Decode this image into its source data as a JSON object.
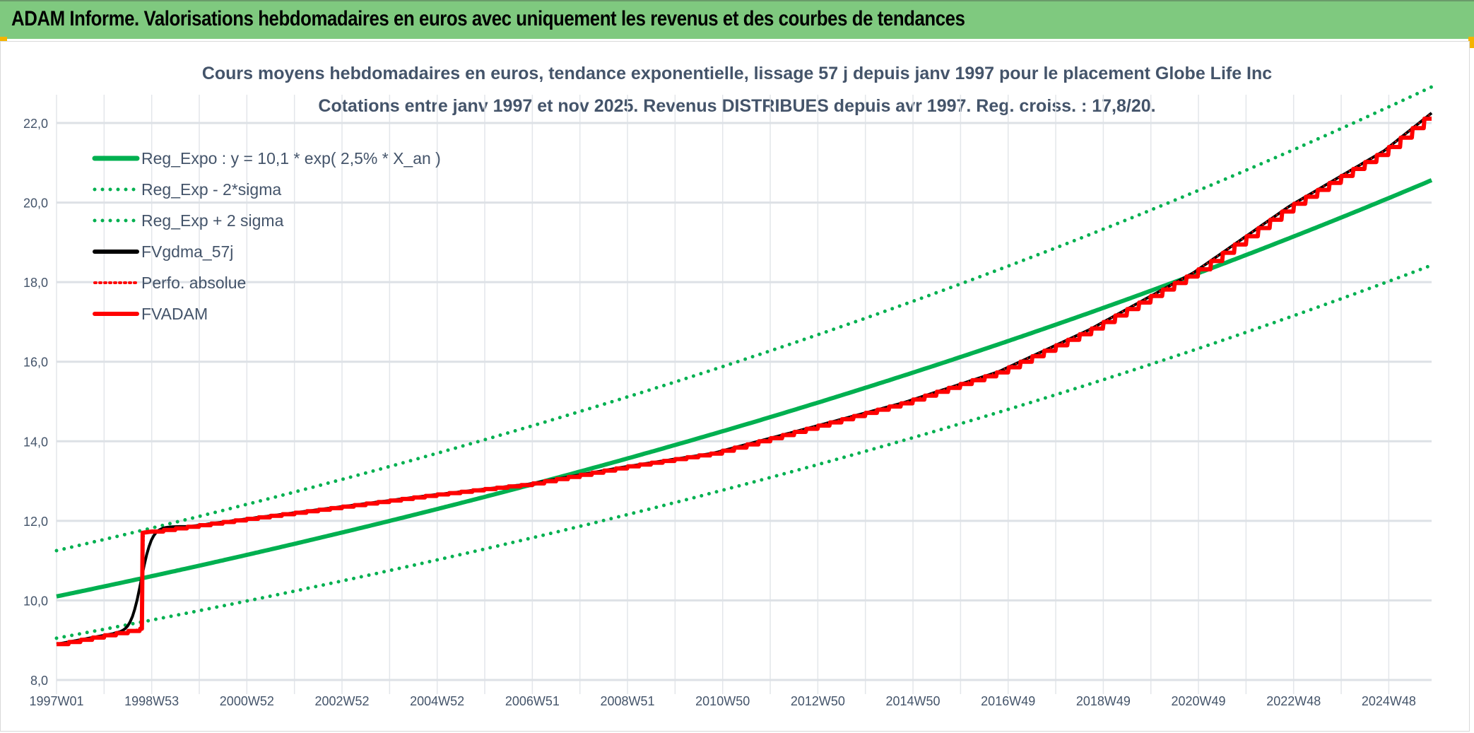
{
  "header": {
    "title": "ADAM Informe. Valorisations hebdomadaires en euros avec uniquement les revenus et des courbes de tendances"
  },
  "chart_data": {
    "type": "line",
    "title": "Cours moyens hebdomadaires en euros, tendance exponentielle, lissage 57 j depuis janv 1997 pour le placement Globe Life Inc",
    "subtitle": "Cotations entre janv 1997 et nov 2025. Revenus DISTRIBUES depuis avr 1997. Reg. croiss. : 17,8/20.",
    "xlabel": "",
    "ylabel": "",
    "x_unit": "years since 1997W01",
    "xlim": [
      0,
      28.9
    ],
    "ylim": [
      8,
      22
    ],
    "yticks": [
      "8,0",
      "10,0",
      "12,0",
      "14,0",
      "16,0",
      "18,0",
      "20,0",
      "22,0"
    ],
    "ytick_values": [
      8,
      10,
      12,
      14,
      16,
      18,
      20,
      22
    ],
    "xticks": [
      "1997W01",
      "1998W53",
      "2000W52",
      "2002W52",
      "2004W52",
      "2006W51",
      "2008W51",
      "2010W50",
      "2012W50",
      "2014W50",
      "2016W49",
      "2018W49",
      "2020W49",
      "2022W48",
      "2024W48"
    ],
    "xtick_values": [
      0,
      2,
      4,
      6,
      8,
      10,
      12,
      14,
      16,
      18,
      20,
      22,
      24,
      26,
      28
    ],
    "grid": true,
    "legend_position": "top-left",
    "series": [
      {
        "name": "Reg_Expo : y = 10,1 * exp( 2,5% *  X_an )",
        "style": "solid",
        "color": "#00b050",
        "a": 10.1,
        "rate": 0.0246
      },
      {
        "name": "Reg_Exp - 2*sigma",
        "style": "dotted",
        "color": "#00b050",
        "factor": 0.896
      },
      {
        "name": "Reg_Exp + 2 sigma",
        "style": "dotted",
        "color": "#00b050",
        "factor": 1.114
      },
      {
        "name": "FVgdma_57j",
        "style": "solid",
        "color": "#000000"
      },
      {
        "name": "Perfo. absolue",
        "style": "dotted",
        "color": "#ff0000"
      },
      {
        "name": "FVADAM",
        "style": "solid",
        "color": "#ff0000",
        "x": [
          0,
          1.8,
          1.81,
          4.0,
          7.9,
          9.9,
          11.9,
          13.8,
          15.8,
          17.8,
          19.8,
          21.7,
          23.9,
          25.9,
          27.9,
          28.9
        ],
        "y": [
          8.9,
          9.3,
          11.7,
          12.05,
          12.65,
          12.92,
          13.35,
          13.7,
          14.33,
          14.97,
          15.75,
          16.8,
          18.24,
          19.9,
          21.3,
          22.25
        ]
      }
    ]
  }
}
